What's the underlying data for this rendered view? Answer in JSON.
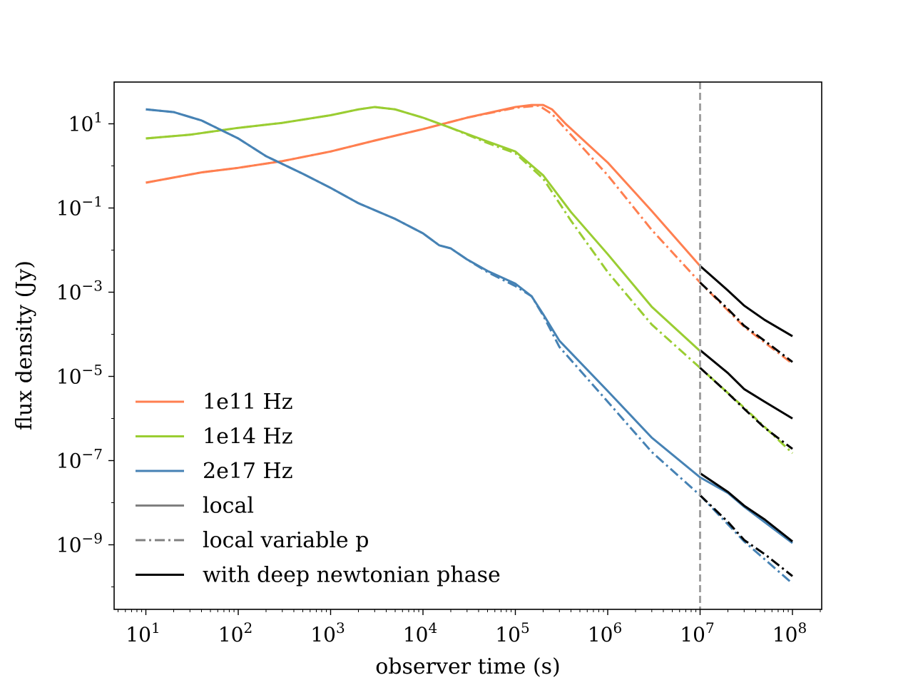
{
  "chart_data": {
    "type": "line",
    "xscale": "log",
    "yscale": "log",
    "xlabel": "observer time (s)",
    "ylabel": "flux density (Jy)",
    "xlim": [
      5,
      200000000
    ],
    "ylim": [
      1e-11,
      100
    ],
    "x_ticks": [
      {
        "value": 10,
        "base": "10",
        "exp": "1"
      },
      {
        "value": 100,
        "base": "10",
        "exp": "2"
      },
      {
        "value": 1000,
        "base": "10",
        "exp": "3"
      },
      {
        "value": 10000,
        "base": "10",
        "exp": "4"
      },
      {
        "value": 100000,
        "base": "10",
        "exp": "5"
      },
      {
        "value": 1000000,
        "base": "10",
        "exp": "6"
      },
      {
        "value": 10000000,
        "base": "10",
        "exp": "7"
      },
      {
        "value": 100000000,
        "base": "10",
        "exp": "8"
      }
    ],
    "y_ticks": [
      {
        "value": 10,
        "base": "10",
        "exp": "1"
      },
      {
        "value": 0.1,
        "base": "10",
        "exp": "−1"
      },
      {
        "value": 0.001,
        "base": "10",
        "exp": "−3"
      },
      {
        "value": 1e-05,
        "base": "10",
        "exp": "−5"
      },
      {
        "value": 1e-07,
        "base": "10",
        "exp": "−7"
      },
      {
        "value": 1e-09,
        "base": "10",
        "exp": "−9"
      }
    ],
    "vline": {
      "x": 10000000,
      "color": "#a0a0a0",
      "style": "dashed"
    },
    "series": [
      {
        "name": "1e11 Hz local",
        "color": "#ff7f50",
        "style": "solid",
        "points": [
          [
            10,
            0.4
          ],
          [
            40,
            0.7
          ],
          [
            100,
            0.9
          ],
          [
            300,
            1.3
          ],
          [
            1000,
            2.2
          ],
          [
            3000,
            4
          ],
          [
            10000,
            7.5
          ],
          [
            30000,
            14
          ],
          [
            100000,
            25
          ],
          [
            150000,
            28
          ],
          [
            200000,
            28
          ],
          [
            250000,
            22
          ],
          [
            350000,
            10
          ],
          [
            1000000,
            1.2
          ],
          [
            3000000,
            0.085
          ],
          [
            10000000,
            0.0042
          ]
        ]
      },
      {
        "name": "1e11 Hz local variable p",
        "color": "#ff7f50",
        "style": "dashdot",
        "points": [
          [
            10,
            0.4
          ],
          [
            40,
            0.7
          ],
          [
            100,
            0.9
          ],
          [
            300,
            1.3
          ],
          [
            1000,
            2.2
          ],
          [
            3000,
            4
          ],
          [
            10000,
            7.5
          ],
          [
            30000,
            14
          ],
          [
            100000,
            24
          ],
          [
            180000,
            27
          ],
          [
            250000,
            17
          ],
          [
            1000000,
            0.6
          ],
          [
            3000000,
            0.03
          ],
          [
            10000000,
            0.0017
          ],
          [
            30000000,
            0.00015
          ],
          [
            100000000,
            2e-05
          ]
        ]
      },
      {
        "name": "1e14 Hz local",
        "color": "#9acd32",
        "style": "solid",
        "points": [
          [
            10,
            4.5
          ],
          [
            30,
            5.5
          ],
          [
            100,
            8
          ],
          [
            300,
            10.5
          ],
          [
            1000,
            16
          ],
          [
            2000,
            22
          ],
          [
            3000,
            25
          ],
          [
            5000,
            22
          ],
          [
            10000,
            14
          ],
          [
            20000,
            8
          ],
          [
            50000,
            3.8
          ],
          [
            100000,
            2.2
          ],
          [
            200000,
            0.6
          ],
          [
            400000,
            0.08
          ],
          [
            1000000,
            0.008
          ],
          [
            3000000,
            0.00045
          ],
          [
            10000000,
            4e-05
          ]
        ]
      },
      {
        "name": "1e14 Hz local variable p",
        "color": "#9acd32",
        "style": "dashdot",
        "points": [
          [
            10,
            4.5
          ],
          [
            30,
            5.5
          ],
          [
            100,
            8
          ],
          [
            300,
            10.5
          ],
          [
            1000,
            16
          ],
          [
            2000,
            22
          ],
          [
            3000,
            25
          ],
          [
            5000,
            22
          ],
          [
            10000,
            14
          ],
          [
            20000,
            8
          ],
          [
            50000,
            3.5
          ],
          [
            100000,
            2
          ],
          [
            200000,
            0.5
          ],
          [
            400000,
            0.05
          ],
          [
            1000000,
            0.003
          ],
          [
            3000000,
            0.00017
          ],
          [
            10000000,
            1.6e-05
          ],
          [
            30000000,
            1.8e-06
          ],
          [
            100000000,
            1.5e-07
          ]
        ]
      },
      {
        "name": "2e17 Hz local",
        "color": "#4682b4",
        "style": "solid",
        "points": [
          [
            10,
            22
          ],
          [
            20,
            19
          ],
          [
            40,
            12
          ],
          [
            100,
            4.5
          ],
          [
            200,
            1.7
          ],
          [
            500,
            0.65
          ],
          [
            1000,
            0.3
          ],
          [
            2000,
            0.13
          ],
          [
            5000,
            0.055
          ],
          [
            10000,
            0.025
          ],
          [
            15000,
            0.013
          ],
          [
            20000,
            0.011
          ],
          [
            30000,
            0.006
          ],
          [
            50000,
            0.0032
          ],
          [
            100000,
            0.0016
          ],
          [
            150000,
            0.0008
          ],
          [
            200000,
            0.0003
          ],
          [
            300000,
            7e-05
          ],
          [
            1000000,
            4.5e-06
          ],
          [
            3000000,
            3.5e-07
          ],
          [
            10000000,
            4e-08
          ],
          [
            20000000,
            1.7e-08
          ],
          [
            30000000,
            8e-09
          ],
          [
            100000000,
            1.1e-09
          ]
        ]
      },
      {
        "name": "2e17 Hz local variable p",
        "color": "#4682b4",
        "style": "dashdot",
        "points": [
          [
            10,
            22
          ],
          [
            20,
            19
          ],
          [
            40,
            12
          ],
          [
            100,
            4.5
          ],
          [
            200,
            1.7
          ],
          [
            500,
            0.65
          ],
          [
            1000,
            0.3
          ],
          [
            2000,
            0.13
          ],
          [
            5000,
            0.055
          ],
          [
            10000,
            0.025
          ],
          [
            15000,
            0.013
          ],
          [
            20000,
            0.011
          ],
          [
            30000,
            0.006
          ],
          [
            50000,
            0.003
          ],
          [
            100000,
            0.0014
          ],
          [
            150000,
            0.0008
          ],
          [
            200000,
            0.00028
          ],
          [
            300000,
            5e-05
          ],
          [
            1000000,
            2.5e-06
          ],
          [
            3000000,
            1.6e-07
          ],
          [
            10000000,
            1.5e-08
          ],
          [
            30000000,
            1.2e-09
          ],
          [
            100000000,
            1.2e-10
          ]
        ]
      },
      {
        "name": "1e11 Hz with deep newtonian phase",
        "color": "#000000",
        "style": "solid",
        "points": [
          [
            10000000,
            0.0042
          ],
          [
            20000000,
            0.0011
          ],
          [
            30000000,
            0.00048
          ],
          [
            50000000,
            0.00022
          ],
          [
            100000000,
            9e-05
          ]
        ]
      },
      {
        "name": "1e11 Hz with deep newtonian phase (variable p)",
        "color": "#000000",
        "style": "dashdot",
        "points": [
          [
            10000000,
            0.0017
          ],
          [
            20000000,
            0.0004
          ],
          [
            30000000,
            0.00016
          ],
          [
            50000000,
            7e-05
          ],
          [
            100000000,
            2.2e-05
          ]
        ]
      },
      {
        "name": "1e14 Hz with deep newtonian phase",
        "color": "#000000",
        "style": "solid",
        "points": [
          [
            10000000,
            4.2e-05
          ],
          [
            20000000,
            1.2e-05
          ],
          [
            30000000,
            5e-06
          ],
          [
            50000000,
            2.5e-06
          ],
          [
            100000000,
            1e-06
          ]
        ]
      },
      {
        "name": "1e14 Hz with deep newtonian phase (variable p)",
        "color": "#000000",
        "style": "dashdot",
        "points": [
          [
            10000000,
            1.6e-05
          ],
          [
            20000000,
            4e-06
          ],
          [
            30000000,
            1.7e-06
          ],
          [
            50000000,
            6e-07
          ],
          [
            100000000,
            1.9e-07
          ]
        ]
      },
      {
        "name": "2e17 Hz with deep newtonian phase",
        "color": "#000000",
        "style": "solid",
        "points": [
          [
            10000000,
            5e-08
          ],
          [
            20000000,
            1.8e-08
          ],
          [
            30000000,
            8.5e-09
          ],
          [
            50000000,
            4e-09
          ],
          [
            100000000,
            1.2e-09
          ]
        ]
      },
      {
        "name": "2e17 Hz with deep newtonian phase (variable p)",
        "color": "#000000",
        "style": "dashdot",
        "points": [
          [
            10000000,
            1.5e-08
          ],
          [
            20000000,
            3.5e-09
          ],
          [
            30000000,
            1.3e-09
          ],
          [
            50000000,
            6e-10
          ],
          [
            100000000,
            1.8e-10
          ]
        ]
      }
    ],
    "legend": {
      "position": "lower-left",
      "entries": [
        {
          "label": "1e11 Hz",
          "color": "#ff7f50",
          "style": "solid"
        },
        {
          "label": "1e14 Hz",
          "color": "#9acd32",
          "style": "solid"
        },
        {
          "label": "2e17 Hz",
          "color": "#4682b4",
          "style": "solid"
        },
        {
          "label": "local",
          "color": "#808080",
          "style": "solid"
        },
        {
          "label": "local variable p",
          "color": "#808080",
          "style": "dashdot"
        },
        {
          "label": "with deep newtonian phase",
          "color": "#000000",
          "style": "solid"
        }
      ]
    }
  }
}
